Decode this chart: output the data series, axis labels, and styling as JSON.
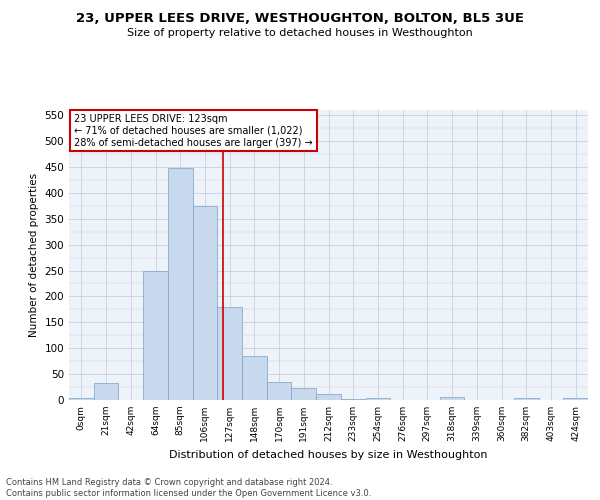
{
  "title": "23, UPPER LEES DRIVE, WESTHOUGHTON, BOLTON, BL5 3UE",
  "subtitle": "Size of property relative to detached houses in Westhoughton",
  "xlabel": "Distribution of detached houses by size in Westhoughton",
  "ylabel": "Number of detached properties",
  "bar_color": "#c9d9ed",
  "bar_edge_color": "#7aA0c4",
  "grid_color": "#c8d0e0",
  "bg_color": "#eef2f9",
  "bin_labels": [
    "0sqm",
    "21sqm",
    "42sqm",
    "64sqm",
    "85sqm",
    "106sqm",
    "127sqm",
    "148sqm",
    "170sqm",
    "191sqm",
    "212sqm",
    "233sqm",
    "254sqm",
    "276sqm",
    "297sqm",
    "318sqm",
    "339sqm",
    "360sqm",
    "382sqm",
    "403sqm",
    "424sqm"
  ],
  "bar_heights": [
    3,
    32,
    0,
    250,
    448,
    375,
    180,
    85,
    35,
    23,
    12,
    2,
    4,
    0,
    0,
    5,
    0,
    0,
    3,
    0,
    3
  ],
  "vline_x": 5.75,
  "vline_color": "#cc0000",
  "annotation_text": "23 UPPER LEES DRIVE: 123sqm\n← 71% of detached houses are smaller (1,022)\n28% of semi-detached houses are larger (397) →",
  "annotation_box_color": "#ffffff",
  "annotation_border_color": "#cc0000",
  "footer": "Contains HM Land Registry data © Crown copyright and database right 2024.\nContains public sector information licensed under the Open Government Licence v3.0.",
  "ylim": [
    0,
    560
  ],
  "yticks": [
    0,
    50,
    100,
    150,
    200,
    250,
    300,
    350,
    400,
    450,
    500,
    550
  ]
}
